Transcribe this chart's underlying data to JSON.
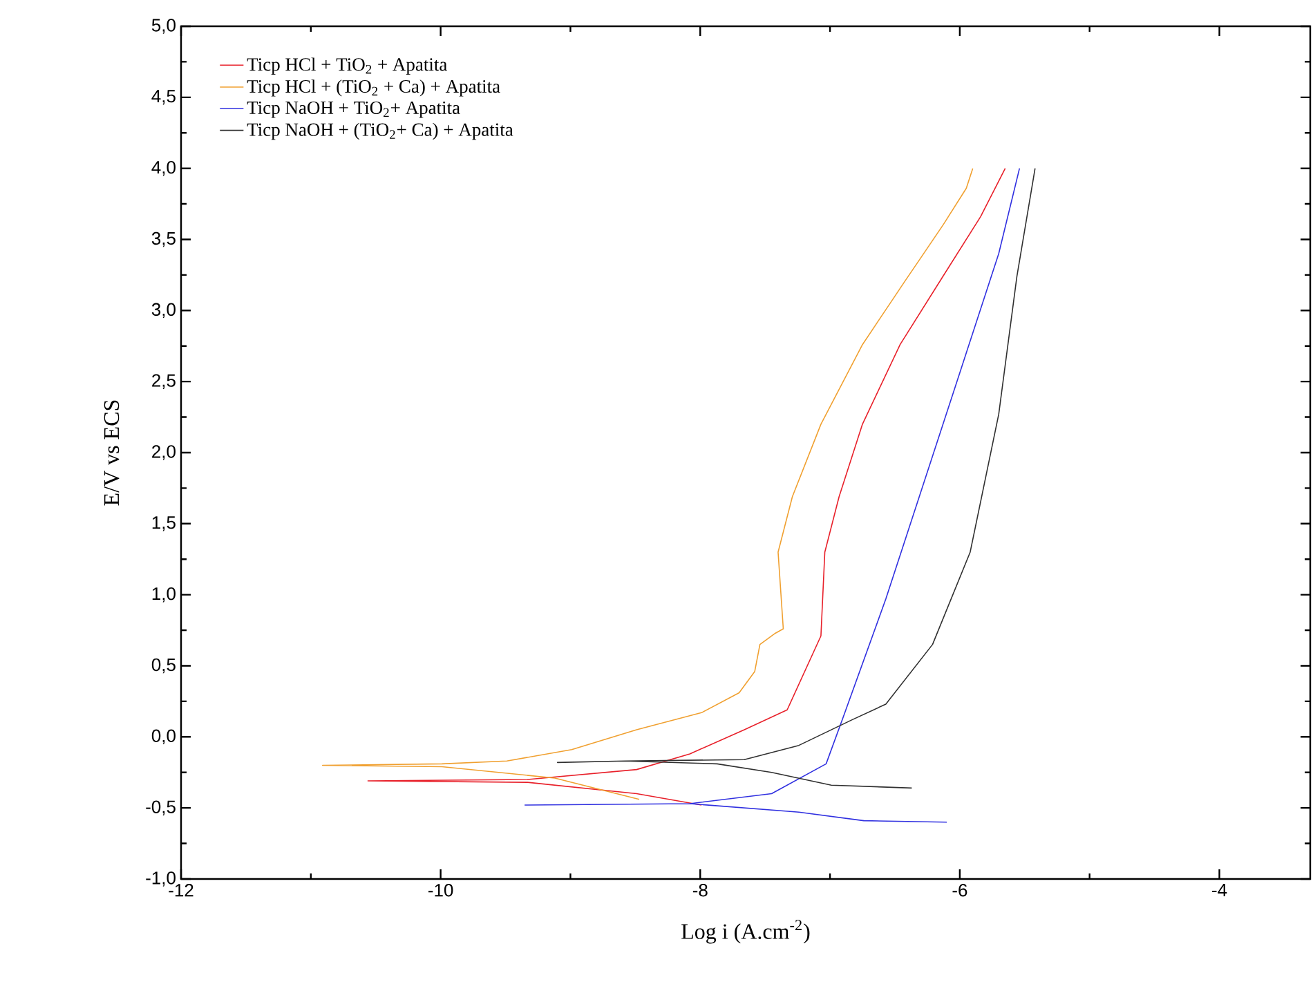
{
  "chart_data": {
    "type": "line",
    "xlabel": "Log i (A.cm$^{-2}$)",
    "ylabel": "E/V vs ECS",
    "xlim": [
      -12,
      -3.3
    ],
    "ylim": [
      -1.0,
      5.0
    ],
    "xticks": [
      -12,
      -10,
      -8,
      -6,
      -4
    ],
    "yticks": [
      {
        "value": -1.0,
        "label": "-1,0"
      },
      {
        "value": -0.5,
        "label": "-0,5"
      },
      {
        "value": 0.0,
        "label": "0,0"
      },
      {
        "value": 0.5,
        "label": "0,5"
      },
      {
        "value": 1.0,
        "label": "1,0"
      },
      {
        "value": 1.5,
        "label": "1,5"
      },
      {
        "value": 2.0,
        "label": "2,0"
      },
      {
        "value": 2.5,
        "label": "2,5"
      },
      {
        "value": 3.0,
        "label": "3,0"
      },
      {
        "value": 3.5,
        "label": "3,5"
      },
      {
        "value": 4.0,
        "label": "4,0"
      },
      {
        "value": 4.5,
        "label": "4,5"
      },
      {
        "value": 5.0,
        "label": "5,0"
      }
    ],
    "grid": false,
    "legend": "top left",
    "marker": "none",
    "line_style": "solid",
    "series": [
      {
        "name": "Ticp HCl + TiO$_{2}$ + Apatita",
        "color": "#e8202a",
        "x": [
          -7.99,
          -8.49,
          -9.33,
          -10.56,
          -9.33,
          -8.49,
          -8.08,
          -7.66,
          -7.33,
          -7.07,
          -7.04,
          -6.93,
          -6.75,
          -6.46,
          -6.13,
          -5.84,
          -5.65
        ],
        "values": [
          -0.48,
          -0.4,
          -0.32,
          -0.31,
          -0.3,
          -0.23,
          -0.12,
          0.05,
          0.19,
          0.71,
          1.3,
          1.69,
          2.2,
          2.76,
          3.24,
          3.66,
          4.0
        ]
      },
      {
        "name": "Ticp HCl + (TiO$_{2}$ + Ca) + Apatita",
        "color": "#f0a030",
        "x": [
          -8.47,
          -9.12,
          -9.99,
          -10.91,
          -9.99,
          -9.49,
          -8.99,
          -8.49,
          -7.99,
          -7.7,
          -7.58,
          -7.54,
          -7.42,
          -7.36,
          -7.4,
          -7.29,
          -7.07,
          -6.75,
          -6.42,
          -6.13,
          -5.95,
          -5.9
        ],
        "values": [
          -0.44,
          -0.29,
          -0.21,
          -0.2,
          -0.19,
          -0.17,
          -0.09,
          0.05,
          0.17,
          0.31,
          0.46,
          0.65,
          0.73,
          0.76,
          1.3,
          1.69,
          2.2,
          2.76,
          3.21,
          3.6,
          3.86,
          4.0
        ]
      },
      {
        "name": "Ticp NaOH + TiO$_{2}$+ Apatita",
        "color": "#3030e0",
        "x": [
          -6.1,
          -6.74,
          -7.24,
          -8.08,
          -9.35,
          -8.08,
          -7.45,
          -7.03,
          -6.89,
          -6.57,
          -6.28,
          -5.99,
          -5.7,
          -5.54
        ],
        "values": [
          -0.6,
          -0.59,
          -0.53,
          -0.47,
          -0.48,
          -0.47,
          -0.4,
          -0.19,
          0.16,
          0.97,
          1.78,
          2.59,
          3.4,
          4.0
        ]
      },
      {
        "name": "Ticp NaOH + (TiO$_{2}$+ Ca) + Apatita",
        "color": "#303030",
        "x": [
          -6.37,
          -6.99,
          -7.45,
          -7.87,
          -8.58,
          -9.1,
          -8.58,
          -7.66,
          -7.24,
          -6.83,
          -6.57,
          -6.21,
          -5.92,
          -5.7,
          -5.56,
          -5.42
        ],
        "values": [
          -0.36,
          -0.34,
          -0.25,
          -0.19,
          -0.17,
          -0.18,
          -0.17,
          -0.16,
          -0.06,
          0.12,
          0.23,
          0.65,
          1.3,
          2.27,
          3.24,
          4.0
        ]
      }
    ]
  }
}
